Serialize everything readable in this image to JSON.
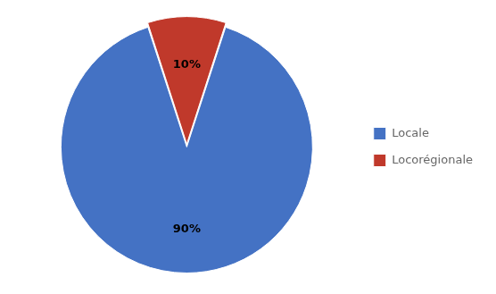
{
  "chart_data": {
    "type": "pie",
    "categories": [
      "Locale",
      "Locorégionale"
    ],
    "values": [
      90,
      10
    ],
    "value_labels": [
      "90%",
      "10%"
    ],
    "colors": [
      "#4472C4",
      "#C0392B"
    ],
    "data_labels": true,
    "legend": "right"
  }
}
